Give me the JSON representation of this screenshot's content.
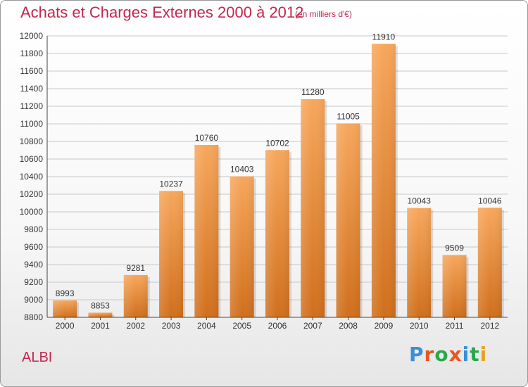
{
  "title": "Achats et Charges Externes 2000 à 2012",
  "subtitle": "(en milliers d'€)",
  "city": "ALBI",
  "logo": {
    "text": "Proxiti",
    "colors": [
      "#3a8fd6",
      "#e8561f",
      "#2aa84a",
      "#e8561f",
      "#3a8fd6",
      "#2aa84a",
      "#e8a21f"
    ]
  },
  "colors": {
    "title": "#c4274f",
    "bar_top": "#f7a75c",
    "bar_bottom": "#d06f1c",
    "grid": "#c8c8c8"
  },
  "chart_data": {
    "type": "bar",
    "categories": [
      "2000",
      "2001",
      "2002",
      "2003",
      "2004",
      "2005",
      "2006",
      "2007",
      "2008",
      "2009",
      "2010",
      "2011",
      "2012"
    ],
    "values": [
      8993,
      8853,
      9281,
      10237,
      10760,
      10403,
      10702,
      11280,
      11005,
      11910,
      10043,
      9509,
      10046
    ],
    "ylim": [
      8800,
      12000
    ],
    "yticks": [
      8800,
      9000,
      9200,
      9400,
      9600,
      9800,
      10000,
      10200,
      10400,
      10600,
      10800,
      11000,
      11200,
      11400,
      11600,
      11800,
      12000
    ],
    "grid": true,
    "data_labels": true
  }
}
